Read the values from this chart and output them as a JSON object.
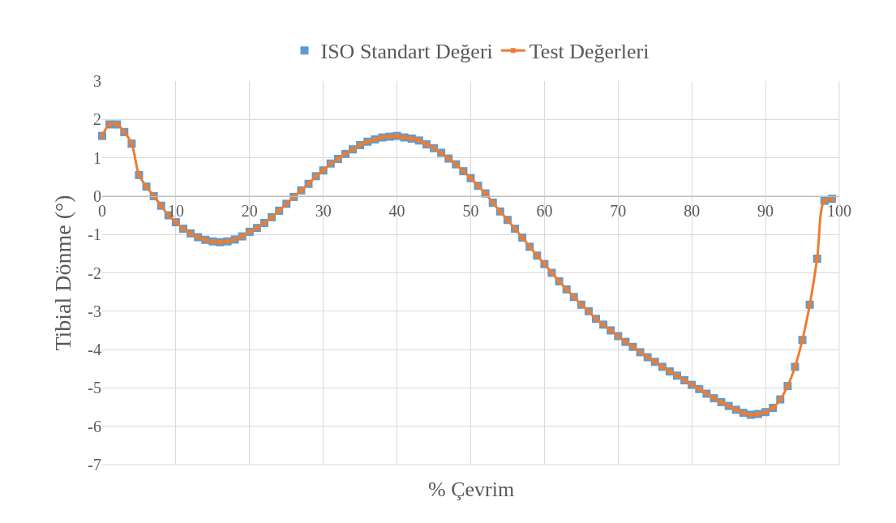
{
  "chart_data": {
    "type": "line",
    "xlabel": "% Çevrim",
    "ylabel": "Tibial Dönme (°)",
    "x": [
      0,
      1,
      2,
      3,
      4,
      5,
      6,
      7,
      8,
      9,
      10,
      11,
      12,
      13,
      14,
      15,
      16,
      17,
      18,
      19,
      20,
      21,
      22,
      23,
      24,
      25,
      26,
      27,
      28,
      29,
      30,
      31,
      32,
      33,
      34,
      35,
      36,
      37,
      38,
      39,
      40,
      41,
      42,
      43,
      44,
      45,
      46,
      47,
      48,
      49,
      50,
      51,
      52,
      53,
      54,
      55,
      56,
      57,
      58,
      59,
      60,
      61,
      62,
      63,
      64,
      65,
      66,
      67,
      68,
      69,
      70,
      71,
      72,
      73,
      74,
      75,
      76,
      77,
      78,
      79,
      80,
      81,
      82,
      83,
      84,
      85,
      86,
      87,
      88,
      89,
      90,
      91,
      92,
      93,
      94,
      95,
      96,
      97,
      98,
      99
    ],
    "series": [
      {
        "name": "ISO Standart Değeri",
        "type": "scatter",
        "color": "#5b9bd5",
        "marker": "square",
        "values": [
          1.57,
          1.87,
          1.87,
          1.67,
          1.37,
          0.55,
          0.25,
          0.0,
          -0.25,
          -0.5,
          -0.68,
          -0.85,
          -0.97,
          -1.07,
          -1.14,
          -1.18,
          -1.2,
          -1.18,
          -1.13,
          -1.05,
          -0.93,
          -0.83,
          -0.7,
          -0.55,
          -0.38,
          -0.2,
          -0.02,
          0.15,
          0.32,
          0.52,
          0.67,
          0.85,
          0.97,
          1.1,
          1.22,
          1.33,
          1.42,
          1.48,
          1.53,
          1.55,
          1.57,
          1.53,
          1.5,
          1.45,
          1.35,
          1.25,
          1.13,
          0.98,
          0.83,
          0.65,
          0.47,
          0.27,
          0.07,
          -0.17,
          -0.4,
          -0.62,
          -0.85,
          -1.08,
          -1.32,
          -1.55,
          -1.77,
          -2.0,
          -2.22,
          -2.43,
          -2.63,
          -2.83,
          -3.0,
          -3.2,
          -3.35,
          -3.5,
          -3.65,
          -3.8,
          -3.93,
          -4.07,
          -4.2,
          -4.32,
          -4.45,
          -4.57,
          -4.68,
          -4.8,
          -4.92,
          -5.03,
          -5.15,
          -5.27,
          -5.37,
          -5.47,
          -5.57,
          -5.65,
          -5.7,
          -5.68,
          -5.63,
          -5.52,
          -5.3,
          -4.95,
          -4.45,
          -3.75,
          -2.83,
          -1.63,
          -0.12,
          -0.07
        ]
      },
      {
        "name": "Test Değerleri",
        "color": "#ed7d31",
        "marker": "square",
        "values": [
          1.57,
          1.87,
          1.87,
          1.67,
          1.37,
          0.55,
          0.25,
          0.0,
          -0.25,
          -0.5,
          -0.68,
          -0.85,
          -0.97,
          -1.07,
          -1.14,
          -1.18,
          -1.2,
          -1.18,
          -1.13,
          -1.05,
          -0.93,
          -0.83,
          -0.7,
          -0.55,
          -0.38,
          -0.2,
          -0.02,
          0.15,
          0.32,
          0.52,
          0.67,
          0.85,
          0.97,
          1.1,
          1.22,
          1.33,
          1.42,
          1.48,
          1.53,
          1.55,
          1.57,
          1.53,
          1.5,
          1.45,
          1.35,
          1.25,
          1.13,
          0.98,
          0.83,
          0.65,
          0.47,
          0.27,
          0.07,
          -0.17,
          -0.4,
          -0.62,
          -0.85,
          -1.08,
          -1.32,
          -1.55,
          -1.77,
          -2.0,
          -2.22,
          -2.43,
          -2.63,
          -2.83,
          -3.0,
          -3.2,
          -3.35,
          -3.5,
          -3.65,
          -3.8,
          -3.93,
          -4.07,
          -4.2,
          -4.32,
          -4.45,
          -4.57,
          -4.68,
          -4.8,
          -4.92,
          -5.03,
          -5.15,
          -5.27,
          -5.37,
          -5.47,
          -5.57,
          -5.65,
          -5.7,
          -5.68,
          -5.63,
          -5.52,
          -5.3,
          -4.95,
          -4.45,
          -3.75,
          -2.83,
          -1.63,
          -0.12,
          -0.07
        ]
      }
    ],
    "xlim": [
      0,
      100
    ],
    "xticks": [
      0,
      10,
      20,
      30,
      40,
      50,
      60,
      70,
      80,
      90,
      100
    ],
    "ylim": [
      -7,
      3
    ],
    "yticks": [
      -7,
      -6,
      -5,
      -4,
      -3,
      -2,
      -1,
      0,
      1,
      2,
      3
    ],
    "grid": true,
    "legend": "top"
  }
}
